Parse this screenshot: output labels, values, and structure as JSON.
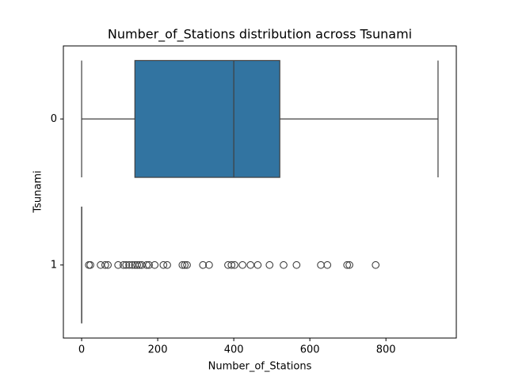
{
  "chart_data": {
    "type": "boxplot",
    "orientation": "horizontal",
    "title": "Number_of_Stations distribution across Tsunami",
    "xlabel": "Number_of_Stations",
    "ylabel": "Tsunami",
    "categories": [
      "0",
      "1"
    ],
    "color": "#3274a1",
    "edge_color": "#3f3f3f",
    "boxes": [
      {
        "min": 0,
        "q1": 140,
        "median": 400,
        "q3": 521,
        "max": 937,
        "outliers": []
      },
      {
        "min": 0,
        "q1": 0,
        "median": 0,
        "q3": 0,
        "max": 0,
        "outliers": [
          19,
          23,
          50,
          62,
          69,
          96,
          110,
          117,
          125,
          133,
          140,
          146,
          152,
          158,
          171,
          177,
          192,
          215,
          225,
          265,
          271,
          277,
          319,
          335,
          385,
          394,
          402,
          423,
          444,
          463,
          494,
          531,
          565,
          629,
          646,
          698,
          704,
          773
        ]
      }
    ],
    "xlim": [
      -48,
      985
    ],
    "xticks": [
      0,
      200,
      400,
      600,
      800
    ]
  }
}
